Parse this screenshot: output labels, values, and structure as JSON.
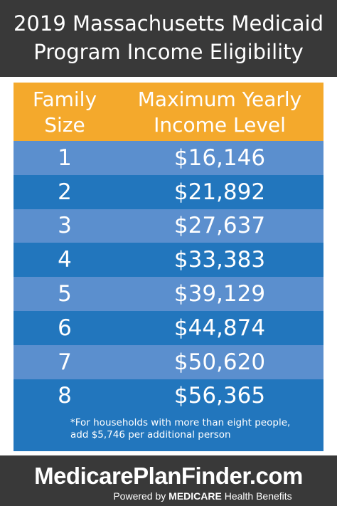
{
  "title": {
    "line1": "2019 Massachusetts Medicaid",
    "line2": "Program Income Eligibility"
  },
  "table": {
    "header": {
      "col1_line1": "Family",
      "col1_line2": "Size",
      "col2_line1": "Maximum Yearly",
      "col2_line2": "Income Level"
    },
    "rows": [
      {
        "size": "1",
        "income": "$16,146"
      },
      {
        "size": "2",
        "income": "$21,892"
      },
      {
        "size": "3",
        "income": "$27,637"
      },
      {
        "size": "4",
        "income": "$33,383"
      },
      {
        "size": "5",
        "income": "$39,129"
      },
      {
        "size": "6",
        "income": "$44,874"
      },
      {
        "size": "7",
        "income": "$50,620"
      },
      {
        "size": "8",
        "income": "$56,365"
      }
    ],
    "footnote": {
      "line1": "*For households with more than eight people,",
      "line2": "add $5,746 per additional person"
    }
  },
  "brand": {
    "logo": "MedicarePlanFinder.com",
    "tag_prefix": "Powered by ",
    "tag_bold": "MEDICARE",
    "tag_suffix": " Health Benefits"
  },
  "colors": {
    "background": "#393939",
    "header": "#f4a92c",
    "row_light": "#5b8fce",
    "row_dark": "#2276bd"
  }
}
